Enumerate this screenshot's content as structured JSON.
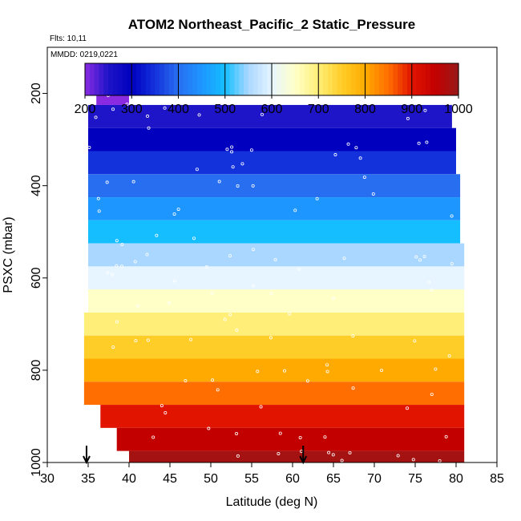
{
  "chart_data": {
    "type": "heatmap",
    "title": "ATOM2 Northeast_Pacific_2 Static_Pressure",
    "flights_label": "Flts: 10,11",
    "dates_label": "MMDD: 0219,0221",
    "xlabel": "Latitude (deg N)",
    "ylabel": "PSXC (mbar)",
    "xlim": [
      30,
      85
    ],
    "ylim": [
      1000,
      100
    ],
    "x_ticks": [
      "30",
      "35",
      "40",
      "45",
      "50",
      "55",
      "60",
      "65",
      "70",
      "75",
      "80",
      "85"
    ],
    "y_ticks": [
      "200",
      "400",
      "600",
      "800",
      "1000"
    ],
    "colorbar": {
      "range": [
        200,
        1000
      ],
      "ticks": [
        "200",
        "300",
        "400",
        "500",
        "600",
        "700",
        "800",
        "900",
        "1000"
      ]
    },
    "pressure_bands": [
      {
        "p_bottom": 225,
        "p_top": 175,
        "lat_min": 36.0,
        "lat_max": 40.0,
        "value": 200
      },
      {
        "p_bottom": 275,
        "p_top": 225,
        "lat_min": 35.0,
        "lat_max": 79.5,
        "value": 250
      },
      {
        "p_bottom": 325,
        "p_top": 275,
        "lat_min": 35.0,
        "lat_max": 80.0,
        "value": 300
      },
      {
        "p_bottom": 375,
        "p_top": 325,
        "lat_min": 35.0,
        "lat_max": 80.0,
        "value": 350
      },
      {
        "p_bottom": 425,
        "p_top": 375,
        "lat_min": 35.0,
        "lat_max": 80.5,
        "value": 400
      },
      {
        "p_bottom": 475,
        "p_top": 425,
        "lat_min": 35.0,
        "lat_max": 80.5,
        "value": 450
      },
      {
        "p_bottom": 525,
        "p_top": 475,
        "lat_min": 35.0,
        "lat_max": 80.5,
        "value": 500
      },
      {
        "p_bottom": 575,
        "p_top": 525,
        "lat_min": 35.0,
        "lat_max": 81.0,
        "value": 550
      },
      {
        "p_bottom": 625,
        "p_top": 575,
        "lat_min": 35.0,
        "lat_max": 81.0,
        "value": 600
      },
      {
        "p_bottom": 675,
        "p_top": 625,
        "lat_min": 35.0,
        "lat_max": 81.0,
        "value": 650
      },
      {
        "p_bottom": 725,
        "p_top": 675,
        "lat_min": 34.5,
        "lat_max": 81.0,
        "value": 700
      },
      {
        "p_bottom": 775,
        "p_top": 725,
        "lat_min": 34.5,
        "lat_max": 81.0,
        "value": 750
      },
      {
        "p_bottom": 825,
        "p_top": 775,
        "lat_min": 34.5,
        "lat_max": 81.0,
        "value": 800
      },
      {
        "p_bottom": 875,
        "p_top": 825,
        "lat_min": 34.5,
        "lat_max": 81.0,
        "value": 850
      },
      {
        "p_bottom": 925,
        "p_top": 875,
        "lat_min": 36.5,
        "lat_max": 81.0,
        "value": 900
      },
      {
        "p_bottom": 975,
        "p_top": 925,
        "lat_min": 38.5,
        "lat_max": 81.0,
        "value": 950
      },
      {
        "p_bottom": 1000,
        "p_top": 975,
        "lat_min": 40.0,
        "lat_max": 81.0,
        "value": 985
      }
    ],
    "arrow_markers_lat": [
      34.8,
      61.3
    ]
  }
}
